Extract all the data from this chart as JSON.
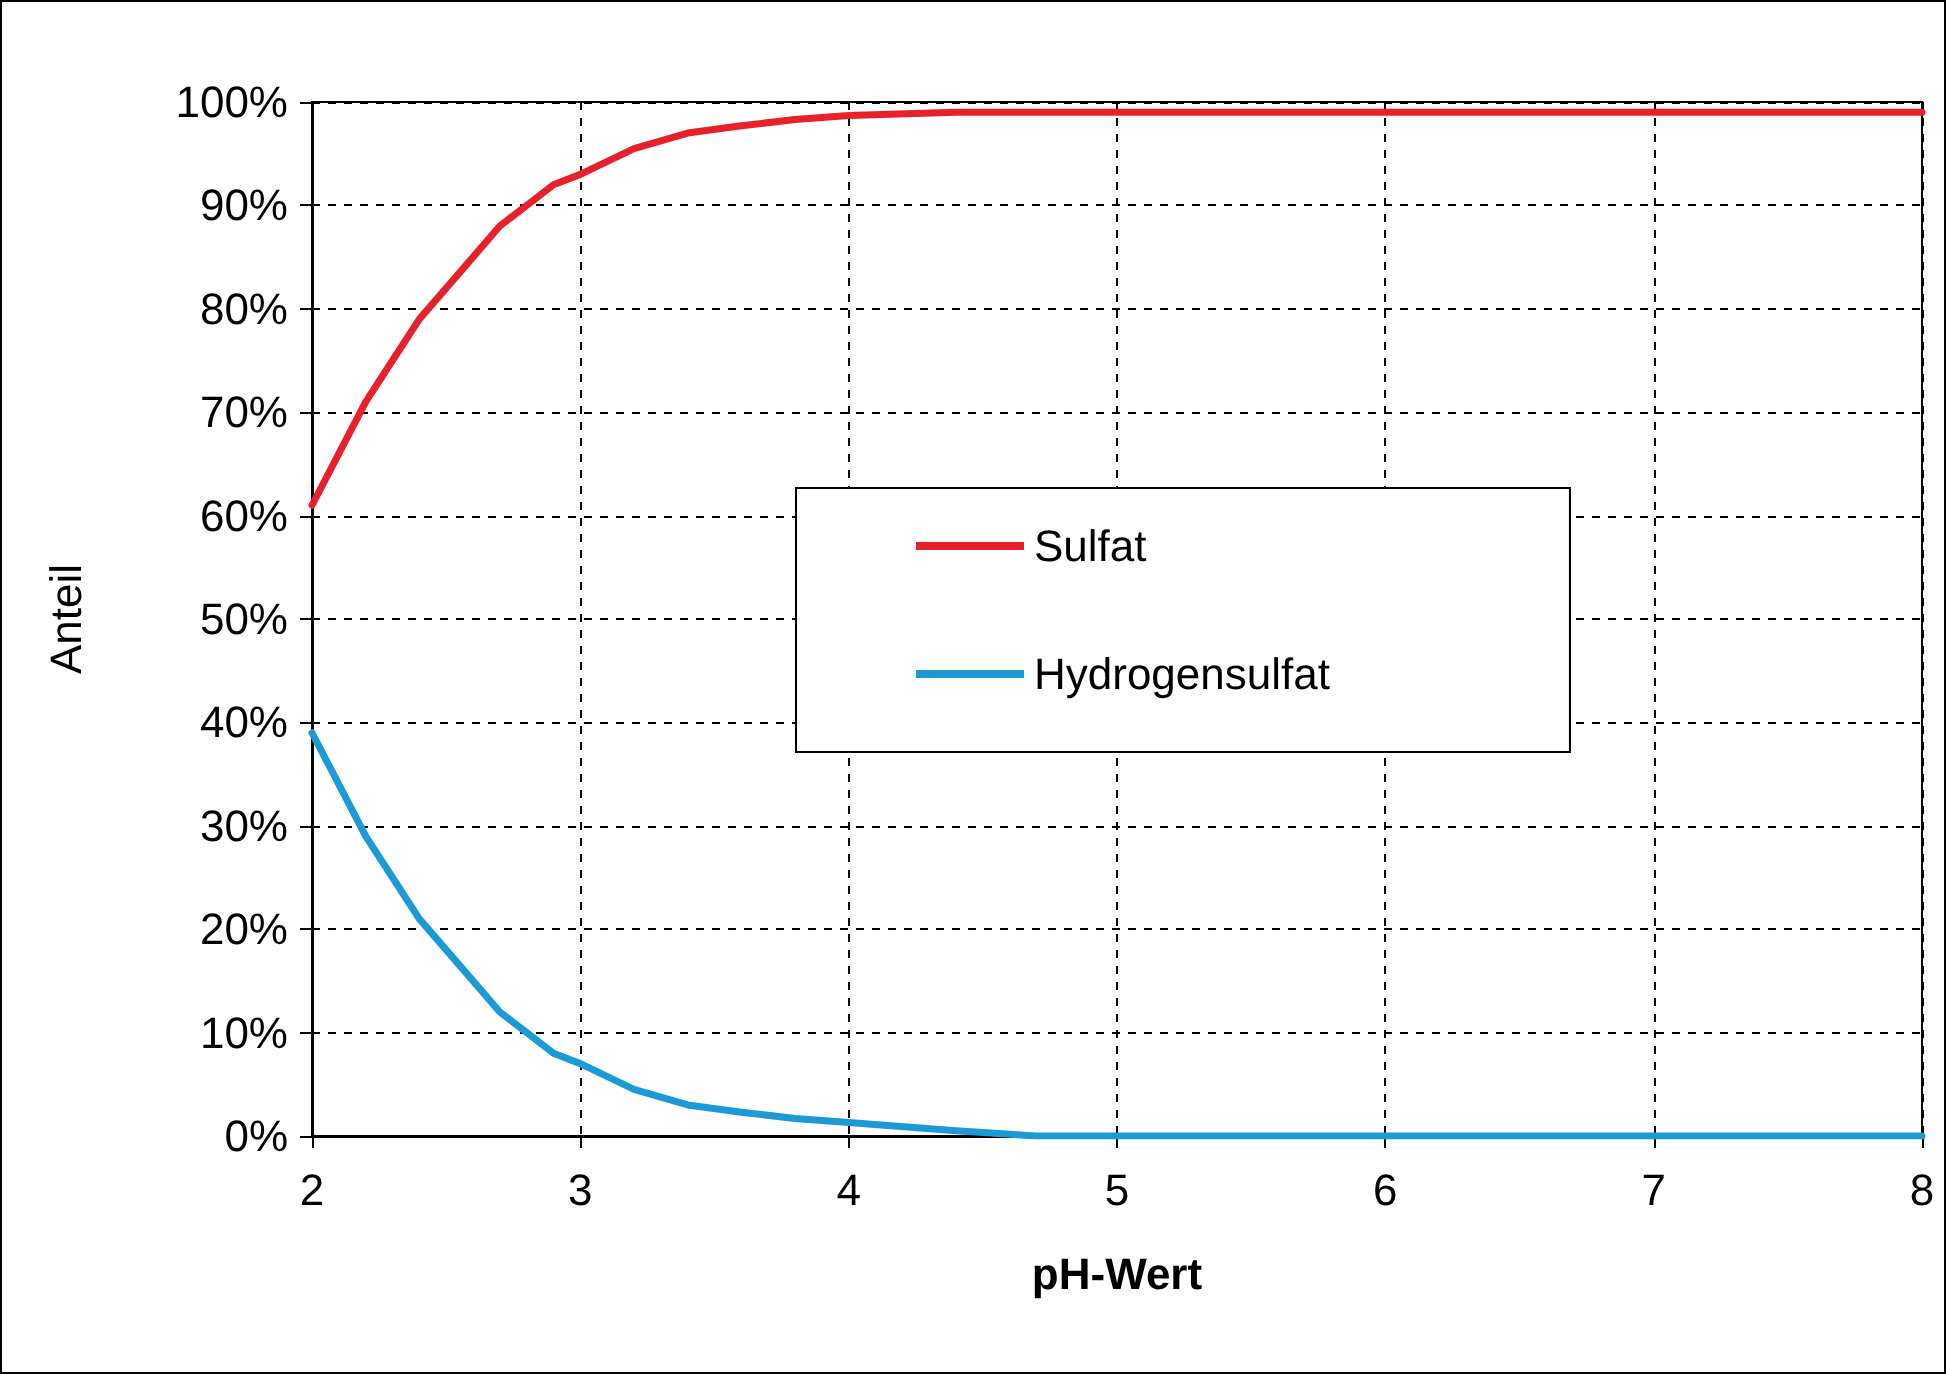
{
  "chart_data": {
    "type": "line",
    "xlabel": "pH-Wert",
    "ylabel": "Anteil",
    "x": [
      2,
      2.1,
      2.2,
      2.3,
      2.4,
      2.5,
      2.6,
      2.7,
      2.8,
      2.9,
      3.0,
      3.2,
      3.4,
      3.6,
      3.8,
      4.0,
      4.4,
      4.7,
      5,
      6,
      7,
      8
    ],
    "series": [
      {
        "name": "Sulfat",
        "color": "#e8202a",
        "values": [
          61,
          66,
          71,
          75,
          79,
          82,
          85,
          88,
          90,
          92,
          93,
          95.5,
          97,
          97.7,
          98.3,
          98.7,
          99,
          99,
          99,
          99,
          99,
          99
        ]
      },
      {
        "name": "Hydrogensulfat",
        "color": "#1a9ad6",
        "values": [
          39,
          34,
          29,
          25,
          21,
          18,
          15,
          12,
          10,
          8,
          7,
          4.5,
          3,
          2.3,
          1.7,
          1.3,
          0.5,
          0,
          0,
          0,
          0,
          0
        ]
      }
    ],
    "xlim": [
      2,
      8
    ],
    "xticks": [
      2,
      3,
      4,
      5,
      6,
      7,
      8
    ],
    "ylim": [
      0,
      100
    ],
    "yticks": [
      {
        "value": 0,
        "label": "0%"
      },
      {
        "value": 10,
        "label": "10%"
      },
      {
        "value": 20,
        "label": "20%"
      },
      {
        "value": 30,
        "label": "30%"
      },
      {
        "value": 40,
        "label": "40%"
      },
      {
        "value": 50,
        "label": "50%"
      },
      {
        "value": 60,
        "label": "60%"
      },
      {
        "value": 70,
        "label": "70%"
      },
      {
        "value": 80,
        "label": "80%"
      },
      {
        "value": 90,
        "label": "90%"
      },
      {
        "value": 100,
        "label": "100%"
      }
    ],
    "grid": true,
    "legend": "center",
    "marker": "none",
    "line_style": "solid"
  }
}
